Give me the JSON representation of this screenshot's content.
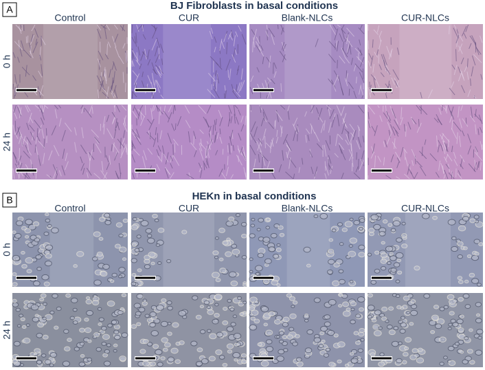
{
  "panels": [
    {
      "label": "A",
      "title": "BJ Fibroblasts in basal conditions",
      "columns": [
        "Control",
        "CUR",
        "Blank-NLCs",
        "CUR-NLCs"
      ],
      "rows": [
        "0 h",
        "24 h"
      ]
    },
    {
      "label": "B",
      "title": "HEKn in basal conditions",
      "columns": [
        "Control",
        "CUR",
        "Blank-NLCs",
        "CUR-NLCs"
      ],
      "rows": [
        "0 h",
        "24 h"
      ]
    }
  ]
}
